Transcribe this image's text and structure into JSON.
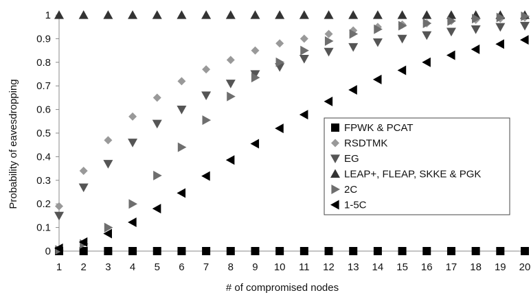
{
  "chart_data": {
    "type": "scatter",
    "title": "",
    "xlabel": "# of compromised nodes",
    "ylabel": "Probability of eavesdropping",
    "x": [
      1,
      2,
      3,
      4,
      5,
      6,
      7,
      8,
      9,
      10,
      11,
      12,
      13,
      14,
      15,
      16,
      17,
      18,
      19,
      20
    ],
    "xlim": [
      1,
      20
    ],
    "ylim": [
      0,
      1
    ],
    "y_ticks": [
      "0",
      "0.1",
      "0.2",
      "0.3",
      "0.4",
      "0.5",
      "0.6",
      "0.7",
      "0.8",
      "0.9",
      "1"
    ],
    "x_ticks": [
      "1",
      "2",
      "3",
      "4",
      "5",
      "6",
      "7",
      "8",
      "9",
      "10",
      "11",
      "12",
      "13",
      "14",
      "15",
      "16",
      "17",
      "18",
      "19",
      "20"
    ],
    "grid": false,
    "legend_position": "right",
    "series": [
      {
        "name": "FPWK & PCAT",
        "marker": "square",
        "color": "#000000",
        "values": [
          0,
          0,
          0,
          0,
          0,
          0,
          0,
          0,
          0,
          0,
          0,
          0,
          0,
          0,
          0,
          0,
          0,
          0,
          0,
          0
        ]
      },
      {
        "name": "RSDTMK",
        "marker": "diamond",
        "color": "#999999",
        "values": [
          0.19,
          0.34,
          0.47,
          0.57,
          0.65,
          0.72,
          0.77,
          0.81,
          0.85,
          0.88,
          0.9,
          0.92,
          0.935,
          0.95,
          0.96,
          0.965,
          0.975,
          0.98,
          0.985,
          0.99
        ]
      },
      {
        "name": "EG",
        "marker": "triangle-down",
        "color": "#555555",
        "values": [
          0.15,
          0.27,
          0.37,
          0.46,
          0.54,
          0.6,
          0.66,
          0.71,
          0.75,
          0.78,
          0.815,
          0.845,
          0.865,
          0.885,
          0.9,
          0.915,
          0.93,
          0.94,
          0.95,
          0.955
        ]
      },
      {
        "name": "LEAP+, FLEAP, SKKE & PGK",
        "marker": "triangle-up",
        "color": "#333333",
        "values": [
          1,
          1,
          1,
          1,
          1,
          1,
          1,
          1,
          1,
          1,
          1,
          1,
          1,
          1,
          1,
          1,
          1,
          1,
          1,
          1
        ]
      },
      {
        "name": "2C",
        "marker": "triangle-right",
        "color": "#6e6e6e",
        "values": [
          0.005,
          0.03,
          0.1,
          0.2,
          0.32,
          0.44,
          0.555,
          0.655,
          0.735,
          0.8,
          0.85,
          0.89,
          0.92,
          0.94,
          0.955,
          0.965,
          0.975,
          0.985,
          0.99,
          0.995
        ]
      },
      {
        "name": "1-5C",
        "marker": "triangle-left",
        "color": "#000000",
        "values": [
          0.012,
          0.038,
          0.074,
          0.122,
          0.18,
          0.246,
          0.318,
          0.386,
          0.455,
          0.52,
          0.578,
          0.634,
          0.683,
          0.727,
          0.766,
          0.8,
          0.83,
          0.855,
          0.877,
          0.895
        ]
      }
    ]
  }
}
